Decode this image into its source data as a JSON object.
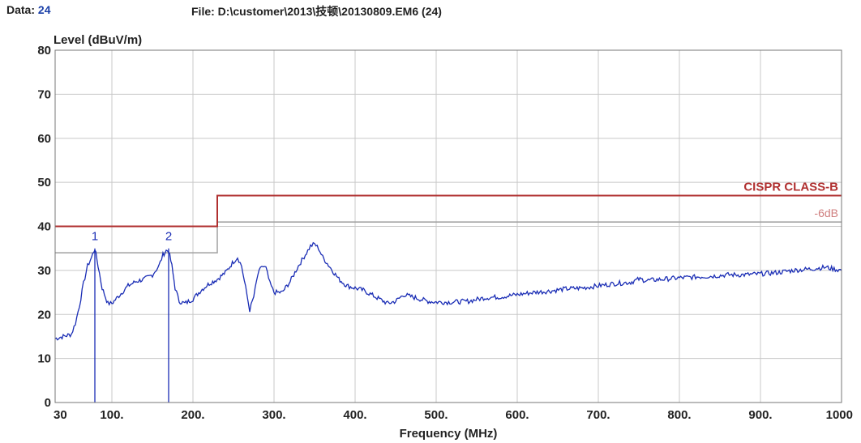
{
  "header": {
    "data_label": "Data:",
    "data_value": "24",
    "file_label": "File:",
    "file_path": "D:\\customer\\2013\\技顿\\20130809.EM6",
    "file_count": "(24)"
  },
  "chart_data": {
    "type": "line",
    "ylabel": "Level (dBuV/m)",
    "xlabel": "Frequency (MHz)",
    "xlim": [
      30,
      1000
    ],
    "ylim": [
      0,
      80
    ],
    "x_ticks": [
      {
        "v": 30,
        "label": "30"
      },
      {
        "v": 100,
        "label": "100."
      },
      {
        "v": 200,
        "label": "200."
      },
      {
        "v": 300,
        "label": "300."
      },
      {
        "v": 400,
        "label": "400."
      },
      {
        "v": 500,
        "label": "500."
      },
      {
        "v": 600,
        "label": "600."
      },
      {
        "v": 700,
        "label": "700."
      },
      {
        "v": 800,
        "label": "800."
      },
      {
        "v": 900,
        "label": "900."
      },
      {
        "v": 1000,
        "label": "1000"
      }
    ],
    "y_ticks": [
      0,
      10,
      20,
      30,
      40,
      50,
      60,
      70,
      80
    ],
    "grid": true,
    "colors": {
      "trace": "#1a2db5",
      "limit": "#b03030",
      "margin": "#a0a0a0",
      "grid": "#c8c8c8"
    },
    "limit_line": {
      "name": "CISPR CLASS-B",
      "segments": [
        {
          "x": [
            30,
            230
          ],
          "y": 40
        },
        {
          "x": [
            230,
            1000
          ],
          "y": 47
        }
      ]
    },
    "margin_line": {
      "name": "-6dB",
      "segments": [
        {
          "x": [
            30,
            230
          ],
          "y": 34
        },
        {
          "x": [
            230,
            1000
          ],
          "y": 41
        }
      ]
    },
    "markers": [
      {
        "label": "1",
        "x": 79,
        "y": 35
      },
      {
        "label": "2",
        "x": 170,
        "y": 35
      }
    ],
    "series": [
      {
        "x": [
          30,
          40,
          50,
          55,
          60,
          65,
          70,
          75,
          79,
          83,
          88,
          95,
          100,
          110,
          120,
          130,
          140,
          150,
          158,
          163,
          167,
          170,
          174,
          178,
          183,
          190,
          200,
          210,
          220,
          230,
          240,
          250,
          255,
          260,
          265,
          270,
          275,
          280,
          285,
          290,
          295,
          300,
          310,
          320,
          330,
          340,
          345,
          350,
          355,
          360,
          370,
          380,
          390,
          400,
          410,
          420,
          430,
          440,
          450,
          460,
          470,
          480,
          490,
          500,
          520,
          540,
          560,
          580,
          600,
          620,
          640,
          660,
          680,
          700,
          720,
          740,
          750,
          760,
          780,
          800,
          820,
          840,
          860,
          880,
          900,
          920,
          940,
          960,
          980,
          1000
        ],
        "y": [
          14.5,
          15,
          15.5,
          18,
          22,
          27,
          31,
          33,
          35,
          31,
          26,
          22.5,
          22.5,
          24.5,
          26.5,
          27.5,
          28,
          29,
          31,
          33.5,
          34.5,
          34.5,
          31,
          26,
          23,
          22.5,
          23.5,
          25.5,
          27,
          28,
          29.5,
          32,
          33,
          31,
          26,
          21,
          24,
          29,
          31,
          30.5,
          27,
          25,
          25,
          27.5,
          31,
          34,
          35.5,
          36,
          35,
          33,
          30.5,
          28,
          26.5,
          26,
          25.5,
          24.5,
          23.5,
          22.5,
          23,
          24.5,
          24,
          23.5,
          23,
          22.8,
          22.8,
          23,
          23.8,
          24,
          24.5,
          25,
          25.3,
          25.8,
          26,
          26.5,
          27,
          27.3,
          28,
          27.7,
          28,
          28.3,
          28.5,
          28.7,
          29,
          29,
          29.2,
          29.5,
          30,
          30.3,
          30.7,
          30
        ]
      }
    ]
  }
}
